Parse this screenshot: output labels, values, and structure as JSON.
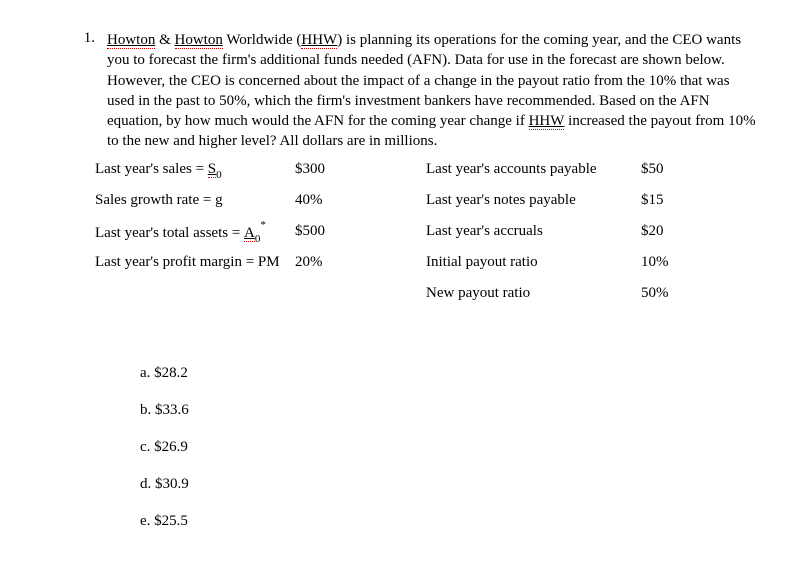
{
  "question": {
    "number": "1.",
    "company_first": "Howton",
    "company_amp": " & ",
    "company_second": "Howton",
    "text_1": " Worldwide (",
    "abbr": "HHW",
    "text_2": ") is planning its operations for the coming year, and the CEO wants you to forecast the firm's additional funds needed (AFN). Data for use in the forecast are shown below. However, the CEO is concerned about the impact of a change in the payout ratio from the 10% that was used in the past to 50%, which the firm's investment bankers have recommended. Based on the AFN equation, by how much would the AFN for the coming year change if ",
    "abbr2": "HHW",
    "text_3": " increased the payout from 10% to the new and higher level? All dollars are in millions."
  },
  "left_rows": [
    {
      "pre": "Last year's sales = ",
      "var_u": "S",
      "sub": "0",
      "sup": "",
      "value": "$300"
    },
    {
      "pre": "Sales growth rate = g",
      "var_u": "",
      "sub": "",
      "sup": "",
      "value": "40%"
    },
    {
      "pre": "Last year's total assets = ",
      "var_u": "A",
      "sub": "0",
      "sup": "*",
      "value": "$500"
    },
    {
      "pre": "Last year's profit margin = PM",
      "var_u": "",
      "sub": "",
      "sup": "",
      "value": "20%"
    }
  ],
  "right_rows": [
    {
      "label": "Last year's accounts payable",
      "value": "$50"
    },
    {
      "label": "Last year's notes payable",
      "value": "$15"
    },
    {
      "label": "Last year's accruals",
      "value": "$20"
    },
    {
      "label": "Initial payout ratio",
      "value": "10%"
    },
    {
      "label": "New payout ratio",
      "value": "50%"
    }
  ],
  "choices": [
    {
      "letter": "a.",
      "text": "$28.2"
    },
    {
      "letter": "b.",
      "text": "$33.6"
    },
    {
      "letter": "c.",
      "text": "$26.9"
    },
    {
      "letter": "d.",
      "text": "$30.9"
    },
    {
      "letter": "e.",
      "text": "$25.5"
    }
  ]
}
